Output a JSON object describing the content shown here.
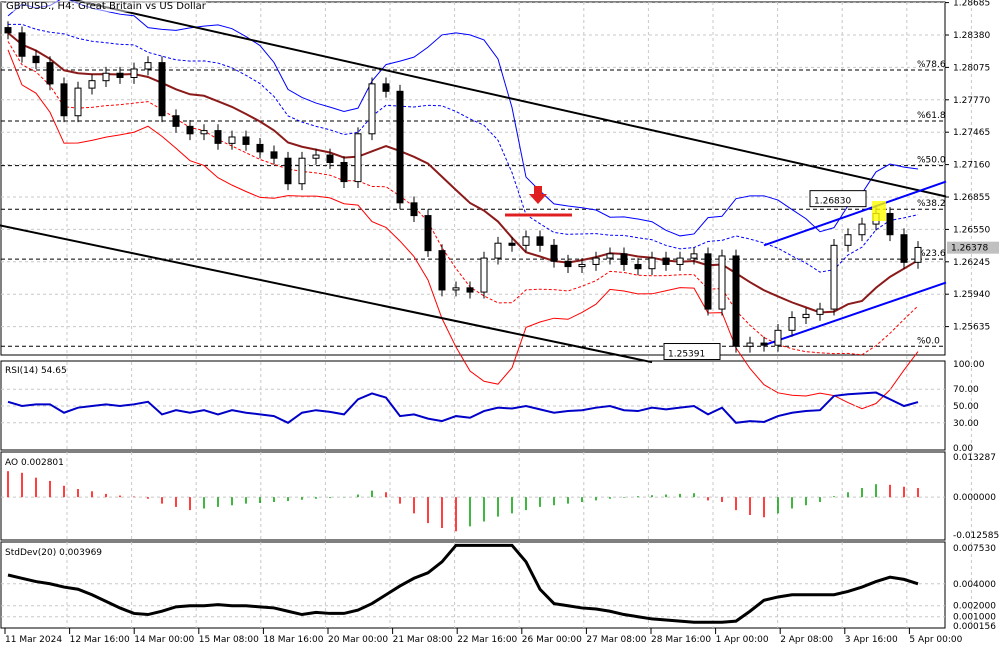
{
  "title": "GBPUSD., H4:  Great Britain vs US Dollar",
  "chart_data": {
    "type": "candlestick",
    "symbol": "GBPUSD.",
    "timeframe": "H4",
    "price_ticks": [
      1.28685,
      1.2838,
      1.28075,
      1.2777,
      1.27465,
      1.2716,
      1.26855,
      1.2655,
      1.26245,
      1.2594,
      1.25635
    ],
    "ylim": [
      1.253,
      1.2871
    ],
    "current_price": "1.26378",
    "closes": [
      1.284,
      1.2818,
      1.2812,
      1.2792,
      1.2762,
      1.2788,
      1.2795,
      1.2802,
      1.2798,
      1.2806,
      1.2812,
      1.2762,
      1.2752,
      1.2745,
      1.2748,
      1.2736,
      1.2742,
      1.2735,
      1.2728,
      1.2722,
      1.2698,
      1.2722,
      1.2725,
      1.2718,
      1.27,
      1.2745,
      1.2792,
      1.2785,
      1.268,
      1.2668,
      1.2635,
      1.2598,
      1.26,
      1.2596,
      1.2628,
      1.2642,
      1.264,
      1.2648,
      1.264,
      1.2625,
      1.262,
      1.2622,
      1.2628,
      1.2632,
      1.2622,
      1.2618,
      1.2628,
      1.2622,
      1.2628,
      1.2632,
      1.258,
      1.263,
      1.2545,
      1.2548,
      1.2546,
      1.256,
      1.2572,
      1.2575,
      1.258,
      1.264,
      1.265,
      1.266,
      1.267,
      1.265,
      1.2624,
      1.2638
    ],
    "time_labels": [
      "11 Mar 2024",
      "12 Mar 16:00",
      "14 Mar 00:00",
      "15 Mar 08:00",
      "18 Mar 16:00",
      "20 Mar 00:00",
      "21 Mar 08:00",
      "22 Mar 16:00",
      "26 Mar 00:00",
      "27 Mar 08:00",
      "28 Mar 16:00",
      "1 Apr 00:00",
      "2 Apr 08:00",
      "3 Apr 16:00",
      "5 Apr 00:00"
    ],
    "fib_levels": [
      {
        "label": "%78.6",
        "price": 1.2805
      },
      {
        "label": "%61.8",
        "price": 1.2757
      },
      {
        "label": "%50.0",
        "price": 1.2715
      },
      {
        "label": "%38.2",
        "price": 1.2674
      },
      {
        "label": "%23.6",
        "price": 1.2627
      },
      {
        "label": "%0.0",
        "price": 1.2545
      }
    ],
    "annotations": [
      {
        "label": "1.26830",
        "price": 1.2683
      },
      {
        "label": "1.25391",
        "price": 1.25391
      }
    ],
    "trendlines": [
      {
        "color": "#000000",
        "from": [
          0,
          1.2885
        ],
        "to": [
          67,
          1.2686
        ]
      },
      {
        "color": "#000000",
        "from": [
          -1,
          1.266
        ],
        "to": [
          46,
          1.253
        ]
      },
      {
        "color": "#0000ff",
        "from": [
          54,
          1.264
        ],
        "to": [
          67,
          1.27
        ]
      },
      {
        "color": "#0000ff",
        "from": [
          54,
          1.2546
        ],
        "to": [
          67,
          1.2605
        ]
      }
    ],
    "rsi": {
      "label": "RSI(14) 54.65",
      "ticks": [
        100,
        70,
        50,
        30,
        0
      ],
      "tick_labels": [
        "100.00",
        "70.00",
        "50.00",
        "30.00",
        "0.00"
      ],
      "values": [
        55,
        50,
        52,
        52,
        42,
        48,
        50,
        52,
        50,
        52,
        55,
        40,
        45,
        42,
        45,
        40,
        45,
        42,
        40,
        38,
        30,
        42,
        45,
        43,
        40,
        58,
        65,
        60,
        38,
        40,
        35,
        32,
        38,
        36,
        44,
        48,
        47,
        50,
        46,
        42,
        44,
        45,
        48,
        50,
        45,
        44,
        48,
        46,
        48,
        50,
        40,
        48,
        30,
        32,
        31,
        38,
        42,
        44,
        45,
        62,
        64,
        65,
        66,
        58,
        50,
        54.65
      ]
    },
    "ao": {
      "label": "AO 0.002801",
      "tick_labels": [
        "0.013287",
        "0.000000",
        "-0.012585"
      ],
      "ylim": [
        -0.012585,
        0.013287
      ],
      "values": [
        0.008,
        0.0075,
        0.006,
        0.005,
        0.0035,
        0.0025,
        0.0018,
        0.001,
        0.0005,
        0.0002,
        -0.0005,
        -0.002,
        -0.003,
        -0.004,
        -0.0035,
        -0.003,
        -0.0025,
        -0.002,
        -0.0018,
        -0.0015,
        -0.0012,
        -0.0008,
        -0.0005,
        -0.0003,
        -0.0001,
        0.0008,
        0.002,
        0.0015,
        -0.002,
        -0.005,
        -0.008,
        -0.0095,
        -0.0105,
        -0.009,
        -0.0075,
        -0.006,
        -0.005,
        -0.004,
        -0.003,
        -0.0025,
        -0.002,
        -0.0015,
        -0.001,
        -0.0005,
        -0.0002,
        0.0003,
        0.0006,
        0.0008,
        0.001,
        0.0012,
        -0.001,
        -0.0015,
        -0.004,
        -0.0055,
        -0.0062,
        -0.005,
        -0.0035,
        -0.0025,
        -0.0015,
        0.0003,
        0.0015,
        0.0028,
        0.004,
        0.0038,
        0.0032,
        0.0028
      ]
    },
    "stddev": {
      "label": "StdDev(20) 0.003969",
      "tick_labels": [
        "0.007530",
        "0.004000",
        "0.002000",
        "0.001000",
        "0.000156"
      ],
      "ticks": [
        0.00753,
        0.004,
        0.002,
        0.001,
        0.000156
      ],
      "ylim": [
        0.000156,
        0.00753
      ],
      "values": [
        0.0048,
        0.0045,
        0.0042,
        0.004,
        0.0037,
        0.0035,
        0.003,
        0.0024,
        0.0018,
        0.0013,
        0.0012,
        0.0015,
        0.0019,
        0.002,
        0.002,
        0.0021,
        0.002,
        0.002,
        0.0019,
        0.0018,
        0.0015,
        0.0012,
        0.0014,
        0.0013,
        0.0013,
        0.0016,
        0.0022,
        0.003,
        0.0038,
        0.0045,
        0.005,
        0.006,
        0.0075,
        0.0075,
        0.0075,
        0.0075,
        0.0075,
        0.006,
        0.0035,
        0.0022,
        0.002,
        0.0018,
        0.0017,
        0.0015,
        0.0012,
        0.001,
        0.0008,
        0.0007,
        0.0006,
        0.0005,
        0.0005,
        0.0005,
        0.0006,
        0.0015,
        0.0025,
        0.0028,
        0.003,
        0.003,
        0.003,
        0.003,
        0.0033,
        0.0037,
        0.0042,
        0.0046,
        0.0044,
        0.004
      ]
    }
  },
  "colors": {
    "up": "#ffffff",
    "down": "#000000",
    "band": "#0000ff",
    "ma": "#8b1a1a",
    "lowband": "#ff0000",
    "ao_up": "#00a000",
    "ao_down": "#ff0000",
    "rsi": "#0000c8"
  }
}
